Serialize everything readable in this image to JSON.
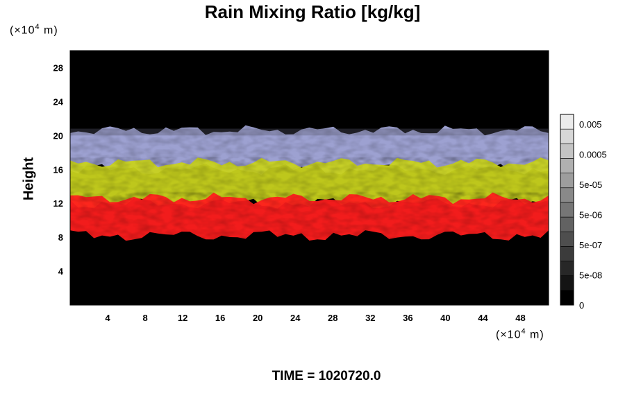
{
  "figure": {
    "title": "Rain Mixing Ratio [kg/kg]",
    "time_label": "TIME = 1020720.0",
    "y_unit_prefix": "(×10",
    "y_unit_exp": "4",
    "y_unit_suffix": " m)",
    "x_unit_prefix": "(×10",
    "x_unit_exp": "4",
    "x_unit_suffix": " m)",
    "ylabel": "Height"
  },
  "chart_data": {
    "type": "heatmap",
    "title": "Rain Mixing Ratio [kg/kg]",
    "xlabel": "",
    "ylabel": "Height",
    "x_unit": "(×10^4 m)",
    "y_unit": "(×10^4 m)",
    "xlim": [
      0,
      51
    ],
    "ylim": [
      0,
      30
    ],
    "xticks": [
      4,
      8,
      12,
      16,
      20,
      24,
      28,
      32,
      36,
      40,
      44,
      48
    ],
    "yticks": [
      4,
      8,
      12,
      16,
      20,
      24,
      28
    ],
    "background_color": "#000000",
    "layers": [
      {
        "name": "red layer",
        "color": "#ff1e1e",
        "y_range": [
          8.2,
          12.6
        ]
      },
      {
        "name": "yellow layer",
        "color": "#c8d21e",
        "y_range": [
          12.0,
          16.8
        ]
      },
      {
        "name": "lavender layer",
        "color": "#a5aadc",
        "y_range": [
          16.0,
          20.6
        ]
      }
    ],
    "colorbar": {
      "labels": [
        "0.005",
        "0.0005",
        "5e-05",
        "5e-06",
        "5e-07",
        "5e-08",
        "0"
      ],
      "levels": 13,
      "color_low": "#000000",
      "color_high": "#ebebeb"
    }
  }
}
